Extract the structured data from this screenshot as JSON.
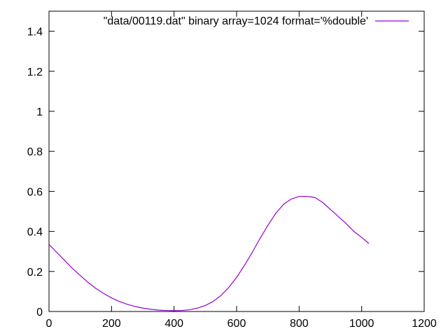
{
  "chart_data": {
    "type": "line",
    "xlim": [
      0,
      1200
    ],
    "ylim": [
      0,
      1.5
    ],
    "x_ticks": [
      "0",
      "200",
      "400",
      "600",
      "800",
      "1000",
      "1200"
    ],
    "y_ticks": [
      "0",
      "0.2",
      "0.4",
      "0.6",
      "0.8",
      "1",
      "1.2",
      "1.4"
    ],
    "legend_position": "top-right",
    "grid": false,
    "series": [
      {
        "name": "\"data/00119.dat\" binary array=1024 format='%double'",
        "color": "#9400d3",
        "x": [
          0,
          25,
          50,
          75,
          100,
          125,
          150,
          175,
          200,
          225,
          250,
          275,
          300,
          325,
          350,
          375,
          400,
          425,
          450,
          475,
          500,
          525,
          550,
          575,
          600,
          625,
          650,
          675,
          700,
          725,
          750,
          775,
          800,
          825,
          850,
          875,
          900,
          925,
          950,
          975,
          1000,
          1023
        ],
        "y": [
          0.335,
          0.295,
          0.255,
          0.215,
          0.18,
          0.145,
          0.115,
          0.09,
          0.068,
          0.05,
          0.036,
          0.025,
          0.017,
          0.011,
          0.007,
          0.005,
          0.004,
          0.005,
          0.009,
          0.017,
          0.03,
          0.05,
          0.08,
          0.12,
          0.17,
          0.23,
          0.295,
          0.365,
          0.43,
          0.49,
          0.535,
          0.562,
          0.575,
          0.575,
          0.57,
          0.545,
          0.51,
          0.475,
          0.44,
          0.4,
          0.37,
          0.34
        ]
      }
    ]
  }
}
